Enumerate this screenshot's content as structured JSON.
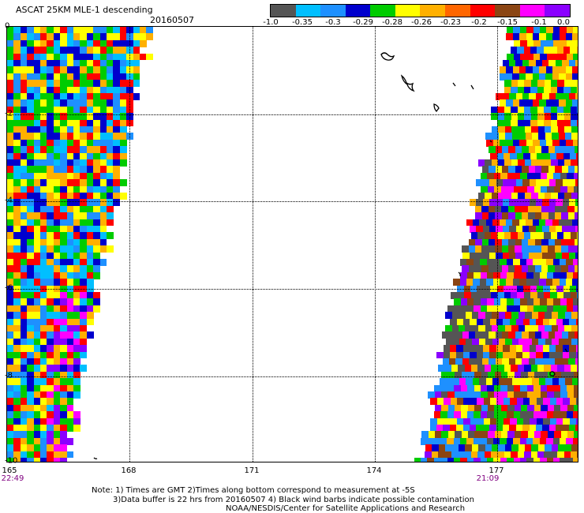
{
  "header": {
    "title": "ASCAT 25KM MLE-1 descending",
    "date": "20160507"
  },
  "colorbar": {
    "colors": [
      "#555555",
      "#00bfff",
      "#1e90ff",
      "#0000cd",
      "#00cc00",
      "#ffff00",
      "#ffb000",
      "#ff6600",
      "#ff0000",
      "#8b4513",
      "#ff00ff",
      "#8a00ff"
    ],
    "labels": [
      "-1.0",
      "-0.35",
      "-0.3",
      "-0.29",
      "-0.28",
      "-0.26",
      "-0.23",
      "-0.2",
      "-0.15",
      "-0.1",
      "0.0"
    ]
  },
  "axes": {
    "x_ticks": [
      "165",
      "168",
      "171",
      "174",
      "177"
    ],
    "y_ticks": [
      "0",
      "-2",
      "-4",
      "-6",
      "-8",
      "-10"
    ]
  },
  "times": {
    "left": "22:49",
    "right": "21:09"
  },
  "notes": {
    "line1": "Note: 1) Times are GMT 2)Times along bottom correspond to measurement at -5S",
    "line2": "3)Data buffer is 22 hrs from 20160507 4) Black wind barbs indicate possible contamination",
    "line3": "NOAA/NESDIS/Center for Satellite Applications and Research"
  }
}
